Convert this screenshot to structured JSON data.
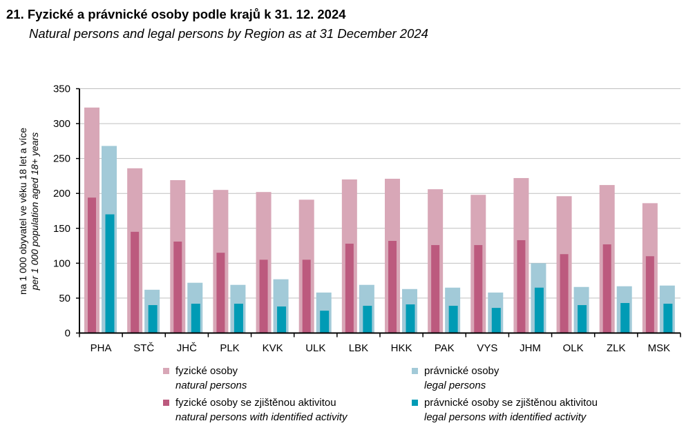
{
  "header": {
    "title": "21. Fyzické a právnické osoby podle krajů k 31. 12. 2024",
    "subtitle": "Natural persons and legal persons by Region as at 31 December 2024"
  },
  "colors": {
    "natural": "#D8A7B7",
    "natural_active": "#BC5A7E",
    "legal": "#A2CAD8",
    "legal_active": "#009BB5",
    "grid": "#BFBFBF",
    "axis": "#000000"
  },
  "chart_data": {
    "type": "bar",
    "title": "21. Fyzické a právnické osoby podle krajů k 31. 12. 2024",
    "subtitle": "Natural persons and legal persons by Region as at 31 December 2024",
    "xlabel": "",
    "ylabel": [
      "na 1 000 obyvatel ve věku 18 let a více",
      "per 1 000 population aged 18+ years"
    ],
    "ylim": [
      0,
      350
    ],
    "yticks": [
      0,
      50,
      100,
      150,
      200,
      250,
      300,
      350
    ],
    "grid": true,
    "legend_position": "bottom",
    "categories": [
      "PHA",
      "STČ",
      "JHČ",
      "PLK",
      "KVK",
      "ULK",
      "LBK",
      "HKK",
      "PAK",
      "VYS",
      "JHM",
      "OLK",
      "ZLK",
      "MSK"
    ],
    "series": [
      {
        "name": "fyzické osoby / natural persons",
        "key": "natural",
        "values": [
          323,
          236,
          219,
          205,
          202,
          191,
          220,
          221,
          206,
          198,
          222,
          196,
          212,
          186
        ]
      },
      {
        "name": "fyzické osoby se zjištěnou aktivitou / natural persons with identified activity",
        "key": "natural_active",
        "values": [
          194,
          145,
          131,
          115,
          105,
          105,
          128,
          132,
          126,
          126,
          133,
          113,
          127,
          110
        ]
      },
      {
        "name": "právnické osoby / legal persons",
        "key": "legal",
        "values": [
          268,
          62,
          72,
          69,
          77,
          58,
          69,
          63,
          65,
          58,
          100,
          66,
          67,
          68
        ]
      },
      {
        "name": "právnické osoby se zjištěnou aktivitou / legal persons with identified activity",
        "key": "legal_active",
        "values": [
          170,
          40,
          42,
          42,
          38,
          32,
          39,
          41,
          39,
          36,
          65,
          40,
          43,
          42
        ]
      }
    ]
  },
  "legend": [
    {
      "key": "natural",
      "cz": "fyzické osoby",
      "en": "natural persons"
    },
    {
      "key": "legal",
      "cz": "právnické  osoby",
      "en": " legal persons"
    },
    {
      "key": "natural_active",
      "cz": "fyzické osoby se zjištěnou  aktivitou",
      "en": "natural persons with identified activity"
    },
    {
      "key": "legal_active",
      "cz": "právnické  osoby se zjištěnou  aktivitou",
      "en": "legal persons with identified activity"
    }
  ]
}
